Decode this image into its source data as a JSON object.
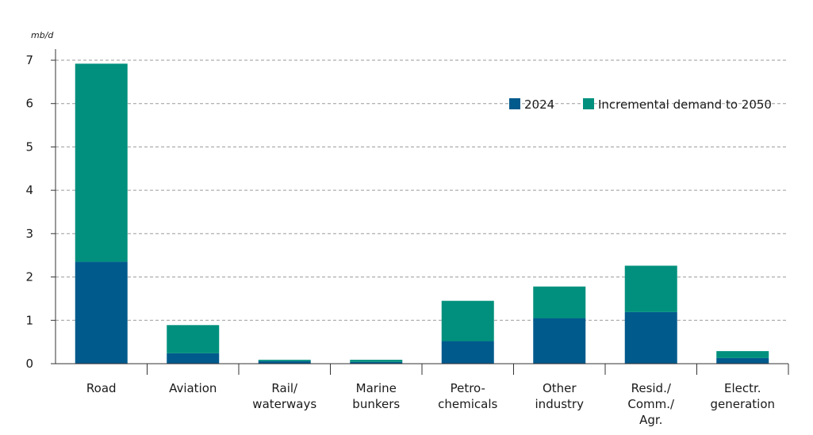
{
  "chart_data": {
    "type": "bar",
    "stacked": true,
    "ylabel": "mb/d",
    "ylim": [
      0,
      7
    ],
    "yticks": [
      "0",
      "1",
      "2",
      "3",
      "4",
      "5",
      "6",
      "7"
    ],
    "grid": true,
    "legend_position": "top-right",
    "categories": [
      [
        "Road"
      ],
      [
        "Aviation"
      ],
      [
        "Rail/",
        "waterways"
      ],
      [
        "Marine",
        "bunkers"
      ],
      [
        "Petro-",
        "chemicals"
      ],
      [
        "Other",
        "industry"
      ],
      [
        "Resid./",
        "Comm./",
        "Agr."
      ],
      [
        "Electr.",
        "generation"
      ]
    ],
    "series": [
      {
        "name": "2024",
        "color": "#005a8c",
        "values": [
          2.35,
          0.24,
          0.06,
          0.04,
          0.52,
          1.05,
          1.19,
          0.13
        ]
      },
      {
        "name": "Incremental demand to 2050",
        "color": "#00907d",
        "values": [
          4.57,
          0.65,
          0.03,
          0.05,
          0.93,
          0.73,
          1.07,
          0.16
        ]
      }
    ]
  }
}
